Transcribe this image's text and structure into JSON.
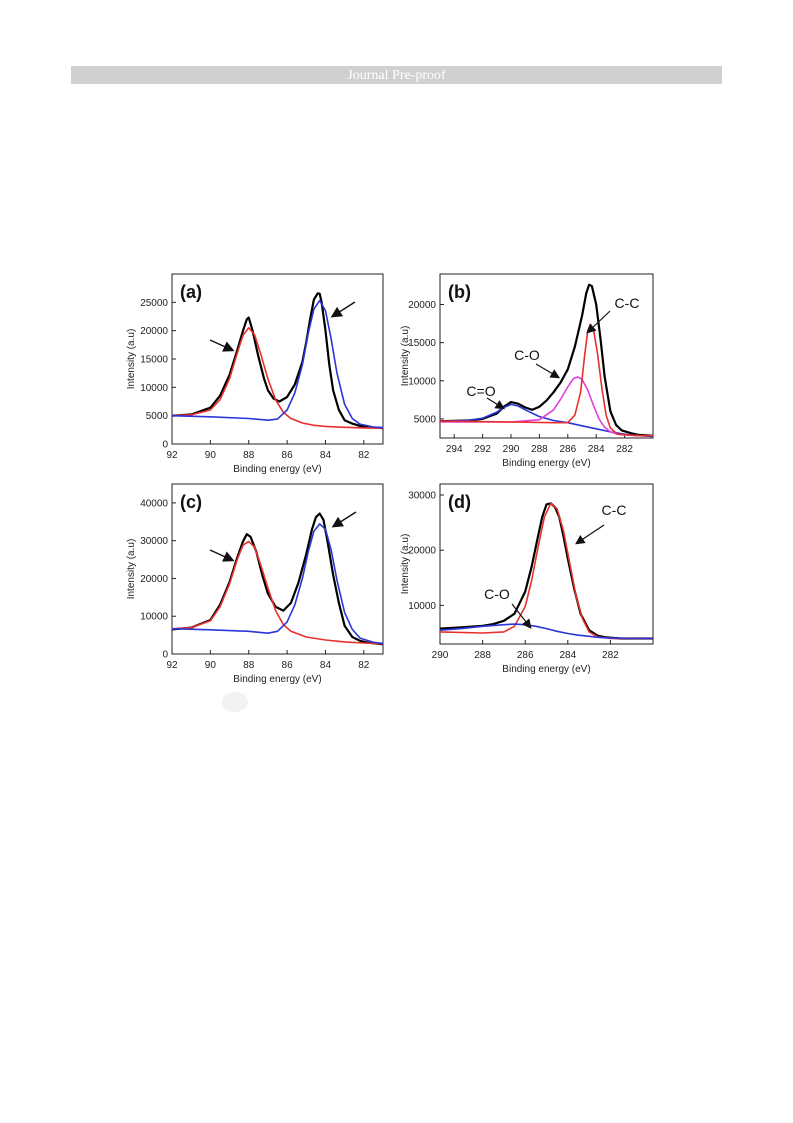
{
  "header": {
    "title": "Journal Pre-proof"
  },
  "chart_data": [
    {
      "panel": "(a)",
      "type": "line",
      "xlabel": "Binding energy (eV)",
      "ylabel": "Intensity (a.u)",
      "xlim": [
        92,
        81
      ],
      "ylim": [
        0,
        30000
      ],
      "xticks": [
        92,
        90,
        88,
        86,
        84,
        82
      ],
      "yticks": [
        0,
        5000,
        10000,
        15000,
        20000,
        25000
      ],
      "series": [
        {
          "role": "raw",
          "color": "#000000",
          "x": [
            92,
            91,
            90,
            89.5,
            89,
            88.6,
            88.3,
            88.1,
            88,
            87.8,
            87.5,
            87.2,
            87,
            86.7,
            86.4,
            86,
            85.6,
            85.2,
            85,
            84.8,
            84.6,
            84.4,
            84.3,
            84.2,
            84,
            83.8,
            83.6,
            83.3,
            83,
            82.6,
            82.2,
            81.8,
            81.4,
            81
          ],
          "y": [
            5000,
            5200,
            6400,
            8500,
            12200,
            16500,
            20000,
            22000,
            22300,
            20000,
            15500,
            11500,
            9500,
            8000,
            7500,
            8300,
            10500,
            14500,
            18000,
            22000,
            25500,
            26600,
            26500,
            25000,
            20000,
            14000,
            9500,
            6000,
            4200,
            3600,
            3200,
            3000,
            2900,
            2800
          ]
        },
        {
          "role": "fit",
          "color": "#e8302c",
          "x": [
            92,
            91,
            90,
            89.5,
            89,
            88.6,
            88.3,
            88,
            87.7,
            87.4,
            87,
            86.6,
            86.2,
            85.8,
            85.2,
            84.6,
            84,
            83,
            82,
            81
          ],
          "y": [
            5000,
            5150,
            6000,
            7800,
            11500,
            16000,
            19200,
            20500,
            19300,
            16200,
            11500,
            7800,
            5600,
            4500,
            3700,
            3300,
            3100,
            2950,
            2850,
            2800
          ]
        },
        {
          "role": "fit",
          "color": "#2a36d8",
          "x": [
            92,
            90,
            88,
            87,
            86.5,
            86,
            85.6,
            85.2,
            84.9,
            84.6,
            84.3,
            84,
            83.7,
            83.4,
            83,
            82.6,
            82.2,
            81.5,
            81
          ],
          "y": [
            5000,
            4800,
            4500,
            4200,
            4400,
            6000,
            9000,
            14000,
            19500,
            23800,
            25300,
            23500,
            18500,
            12500,
            7000,
            4500,
            3500,
            3000,
            2900
          ]
        }
      ]
    },
    {
      "panel": "(b)",
      "type": "line",
      "xlabel": "Binding energy (eV)",
      "ylabel": "Intensity (a.u)",
      "xlim": [
        295,
        280
      ],
      "ylim": [
        2500,
        24000
      ],
      "xticks": [
        294,
        292,
        290,
        288,
        286,
        284,
        282
      ],
      "yticks": [
        5000,
        10000,
        15000,
        20000
      ],
      "annotations": [
        "C=O",
        "C-O",
        "C-C"
      ],
      "series": [
        {
          "role": "raw",
          "color": "#000000",
          "x": [
            295,
            293,
            292,
            291,
            290.5,
            290,
            289.5,
            289,
            288.5,
            288,
            287.5,
            287,
            286.5,
            286,
            285.5,
            285,
            284.7,
            284.5,
            284.3,
            284,
            283.7,
            283.4,
            283,
            282.6,
            282.2,
            281.5,
            281,
            280
          ],
          "y": [
            4700,
            4800,
            5000,
            5700,
            6600,
            7200,
            7000,
            6500,
            6200,
            6600,
            7400,
            8500,
            9800,
            11500,
            14500,
            18500,
            21500,
            22600,
            22400,
            20000,
            15500,
            10500,
            6000,
            4200,
            3500,
            3100,
            2900,
            2800
          ]
        },
        {
          "role": "fit",
          "color": "#2a36d8",
          "x": [
            295,
            293,
            292,
            291,
            290.5,
            290,
            289.5,
            289,
            288,
            287,
            286,
            285,
            284,
            283,
            282,
            281,
            280
          ],
          "y": [
            4700,
            4800,
            5100,
            5900,
            6500,
            6900,
            6700,
            6200,
            5300,
            4800,
            4500,
            4100,
            3700,
            3300,
            3000,
            2800,
            2700
          ]
        },
        {
          "role": "fit",
          "color": "#e040e0",
          "x": [
            295,
            290,
            288,
            287,
            286.5,
            286,
            285.6,
            285.3,
            285,
            284.6,
            284.2,
            283.8,
            283.4,
            283,
            282.5,
            282,
            281,
            280
          ],
          "y": [
            4600,
            4600,
            4900,
            6200,
            7600,
            9200,
            10300,
            10500,
            10200,
            8800,
            6800,
            5000,
            3900,
            3300,
            3000,
            2900,
            2800,
            2800
          ]
        },
        {
          "role": "fit",
          "color": "#e8302c",
          "x": [
            295,
            290,
            287,
            286,
            285.5,
            285.1,
            284.8,
            284.6,
            284.4,
            284.2,
            283.9,
            283.6,
            283.3,
            283,
            282.5,
            281,
            280
          ],
          "y": [
            4700,
            4600,
            4500,
            4500,
            5500,
            8500,
            13500,
            16500,
            17400,
            16800,
            13500,
            9000,
            5500,
            3800,
            3000,
            2800,
            2800
          ]
        }
      ]
    },
    {
      "panel": "(c)",
      "type": "line",
      "xlabel": "Binding energy (eV)",
      "ylabel": "Intensity (a.u)",
      "xlim": [
        92,
        81
      ],
      "ylim": [
        0,
        45000
      ],
      "xticks": [
        92,
        90,
        88,
        86,
        84,
        82
      ],
      "yticks": [
        0,
        10000,
        20000,
        30000,
        40000
      ],
      "series": [
        {
          "role": "raw",
          "color": "#000000",
          "x": [
            92,
            91,
            90,
            89.5,
            89,
            88.6,
            88.3,
            88.1,
            87.9,
            87.6,
            87.3,
            87,
            86.6,
            86.2,
            85.8,
            85.4,
            85,
            84.7,
            84.5,
            84.3,
            84.1,
            83.9,
            83.6,
            83.3,
            83,
            82.6,
            82.2,
            81.8,
            81.4,
            81
          ],
          "y": [
            6500,
            7000,
            9000,
            13000,
            19000,
            25500,
            29800,
            31700,
            31000,
            27000,
            21000,
            16000,
            12500,
            11500,
            13500,
            19000,
            26500,
            33000,
            36200,
            37200,
            35500,
            30000,
            21000,
            13500,
            7500,
            4500,
            3500,
            3000,
            2800,
            2600
          ]
        },
        {
          "role": "fit",
          "color": "#e8302c",
          "x": [
            92,
            91,
            90,
            89.5,
            89,
            88.6,
            88.3,
            88,
            87.7,
            87.4,
            87,
            86.6,
            86.2,
            85.8,
            85,
            84,
            83,
            82,
            81
          ],
          "y": [
            6600,
            7000,
            8800,
            12500,
            18500,
            25000,
            28800,
            29800,
            28300,
            24000,
            17500,
            11500,
            7800,
            6000,
            4500,
            3700,
            3200,
            2900,
            2700
          ]
        },
        {
          "role": "fit",
          "color": "#2a36d8",
          "x": [
            92,
            90,
            88,
            87,
            86.5,
            86,
            85.6,
            85.2,
            84.9,
            84.6,
            84.3,
            84,
            83.7,
            83.4,
            83,
            82.6,
            82.2,
            81.5,
            81
          ],
          "y": [
            6700,
            6400,
            6000,
            5500,
            6000,
            8500,
            13000,
            20000,
            27000,
            32500,
            34400,
            33000,
            27500,
            19500,
            11000,
            6500,
            4200,
            3100,
            2800
          ]
        }
      ]
    },
    {
      "panel": "(d)",
      "type": "line",
      "xlabel": "Binding energy (eV)",
      "ylabel": "Intensity (a.u)",
      "xlim": [
        290,
        280
      ],
      "ylim": [
        3000,
        32000
      ],
      "xticks": [
        290,
        288,
        286,
        284,
        282
      ],
      "yticks": [
        10000,
        20000,
        30000
      ],
      "annotations": [
        "C-O",
        "C-C"
      ],
      "series": [
        {
          "role": "raw",
          "color": "#000000",
          "x": [
            290,
            289,
            288,
            287.5,
            287,
            286.5,
            286,
            285.7,
            285.4,
            285.2,
            285,
            284.8,
            284.6,
            284.4,
            284.2,
            284,
            283.7,
            283.4,
            283,
            282.6,
            282.2,
            281.5,
            281,
            280
          ],
          "y": [
            5800,
            6000,
            6300,
            6600,
            7200,
            8500,
            12500,
            17000,
            22500,
            26000,
            28300,
            28500,
            27800,
            26000,
            22500,
            18500,
            13000,
            8500,
            5500,
            4500,
            4200,
            4000,
            4000,
            4000
          ]
        },
        {
          "role": "fit",
          "color": "#e8302c",
          "x": [
            290,
            288,
            287,
            286.5,
            286,
            285.7,
            285.4,
            285.1,
            284.8,
            284.5,
            284.2,
            283.9,
            283.6,
            283.3,
            283,
            282.6,
            282,
            281,
            280
          ],
          "y": [
            5200,
            5000,
            5200,
            6200,
            9800,
            14500,
            20500,
            26000,
            28500,
            27500,
            23500,
            17500,
            11500,
            7500,
            5200,
            4300,
            4000,
            4000,
            4000
          ]
        },
        {
          "role": "fit",
          "color": "#2a36d8",
          "x": [
            290,
            289,
            288,
            287,
            286.5,
            286,
            285.5,
            285,
            284.5,
            284,
            283.5,
            283,
            282.5,
            282,
            281,
            280
          ],
          "y": [
            5500,
            5800,
            6200,
            6500,
            6600,
            6500,
            6200,
            5800,
            5300,
            4900,
            4600,
            4400,
            4200,
            4100,
            4000,
            4000
          ]
        }
      ]
    }
  ]
}
